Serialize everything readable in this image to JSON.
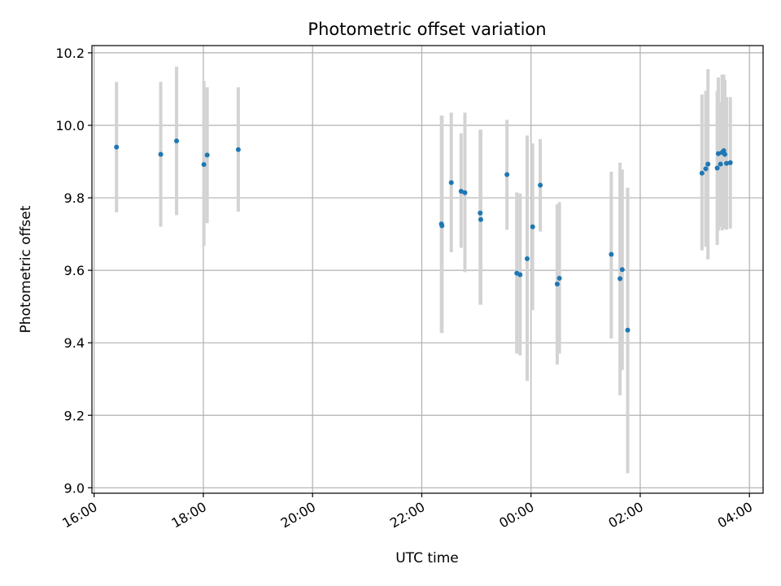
{
  "chart_data": {
    "type": "scatter",
    "title": "Photometric offset variation",
    "xlabel": "UTC time",
    "ylabel": "Photometric offset",
    "x_unit": "hours",
    "xlim": [
      15.96,
      28.25
    ],
    "ylim": [
      8.985,
      10.22
    ],
    "xticks": [
      {
        "value": 16,
        "label": "16:00"
      },
      {
        "value": 18,
        "label": "18:00"
      },
      {
        "value": 20,
        "label": "20:00"
      },
      {
        "value": 22,
        "label": "22:00"
      },
      {
        "value": 24,
        "label": "00:00"
      },
      {
        "value": 26,
        "label": "02:00"
      },
      {
        "value": 28,
        "label": "04:00"
      }
    ],
    "yticks": [
      {
        "value": 9.0,
        "label": "9.0"
      },
      {
        "value": 9.2,
        "label": "9.2"
      },
      {
        "value": 9.4,
        "label": "9.4"
      },
      {
        "value": 9.6,
        "label": "9.6"
      },
      {
        "value": 9.8,
        "label": "9.8"
      },
      {
        "value": 10.0,
        "label": "10.0"
      },
      {
        "value": 10.2,
        "label": "10.2"
      }
    ],
    "grid": true,
    "point_color": "#1f77b4",
    "errorbar_color": "#d3d3d3",
    "points": [
      {
        "x": 16.41,
        "y": 9.94,
        "lo": 9.76,
        "hi": 10.12
      },
      {
        "x": 17.22,
        "y": 9.92,
        "lo": 9.72,
        "hi": 10.12
      },
      {
        "x": 17.51,
        "y": 9.957,
        "lo": 9.752,
        "hi": 10.162
      },
      {
        "x": 18.01,
        "y": 9.892,
        "lo": 9.667,
        "hi": 10.122
      },
      {
        "x": 18.07,
        "y": 9.918,
        "lo": 9.73,
        "hi": 10.105
      },
      {
        "x": 18.64,
        "y": 9.933,
        "lo": 9.762,
        "hi": 10.105
      },
      {
        "x": 22.36,
        "y": 9.728,
        "lo": 9.427,
        "hi": 10.027
      },
      {
        "x": 22.37,
        "y": 9.723,
        "lo": 9.427,
        "hi": 10.027
      },
      {
        "x": 22.54,
        "y": 9.842,
        "lo": 9.65,
        "hi": 10.035
      },
      {
        "x": 22.72,
        "y": 9.818,
        "lo": 9.662,
        "hi": 9.978
      },
      {
        "x": 22.79,
        "y": 9.814,
        "lo": 9.595,
        "hi": 10.035
      },
      {
        "x": 23.07,
        "y": 9.758,
        "lo": 9.505,
        "hi": 9.988
      },
      {
        "x": 23.08,
        "y": 9.74,
        "lo": 9.505,
        "hi": 9.988
      },
      {
        "x": 23.56,
        "y": 9.864,
        "lo": 9.712,
        "hi": 10.015
      },
      {
        "x": 23.74,
        "y": 9.592,
        "lo": 9.37,
        "hi": 9.815
      },
      {
        "x": 23.8,
        "y": 9.588,
        "lo": 9.365,
        "hi": 9.812
      },
      {
        "x": 23.93,
        "y": 9.632,
        "lo": 9.295,
        "hi": 9.972
      },
      {
        "x": 24.03,
        "y": 9.72,
        "lo": 9.49,
        "hi": 9.95
      },
      {
        "x": 24.17,
        "y": 9.835,
        "lo": 9.707,
        "hi": 9.962
      },
      {
        "x": 24.48,
        "y": 9.562,
        "lo": 9.34,
        "hi": 9.782
      },
      {
        "x": 24.52,
        "y": 9.578,
        "lo": 9.37,
        "hi": 9.788
      },
      {
        "x": 25.47,
        "y": 9.644,
        "lo": 9.412,
        "hi": 9.872
      },
      {
        "x": 25.63,
        "y": 9.577,
        "lo": 9.255,
        "hi": 9.897
      },
      {
        "x": 25.67,
        "y": 9.602,
        "lo": 9.325,
        "hi": 9.878
      },
      {
        "x": 25.77,
        "y": 9.435,
        "lo": 9.04,
        "hi": 9.828
      },
      {
        "x": 27.13,
        "y": 9.868,
        "lo": 9.655,
        "hi": 10.085
      },
      {
        "x": 27.2,
        "y": 9.88,
        "lo": 9.665,
        "hi": 10.095
      },
      {
        "x": 27.24,
        "y": 9.893,
        "lo": 9.63,
        "hi": 10.155
      },
      {
        "x": 27.41,
        "y": 9.882,
        "lo": 9.67,
        "hi": 10.095
      },
      {
        "x": 27.43,
        "y": 9.922,
        "lo": 9.71,
        "hi": 10.132
      },
      {
        "x": 27.47,
        "y": 9.893,
        "lo": 9.72,
        "hi": 10.065
      },
      {
        "x": 27.5,
        "y": 9.925,
        "lo": 9.71,
        "hi": 10.14
      },
      {
        "x": 27.53,
        "y": 9.93,
        "lo": 9.715,
        "hi": 10.14
      },
      {
        "x": 27.55,
        "y": 9.92,
        "lo": 9.715,
        "hi": 10.125
      },
      {
        "x": 27.58,
        "y": 9.895,
        "lo": 9.712,
        "hi": 10.078
      },
      {
        "x": 27.65,
        "y": 9.897,
        "lo": 9.715,
        "hi": 10.078
      }
    ]
  }
}
